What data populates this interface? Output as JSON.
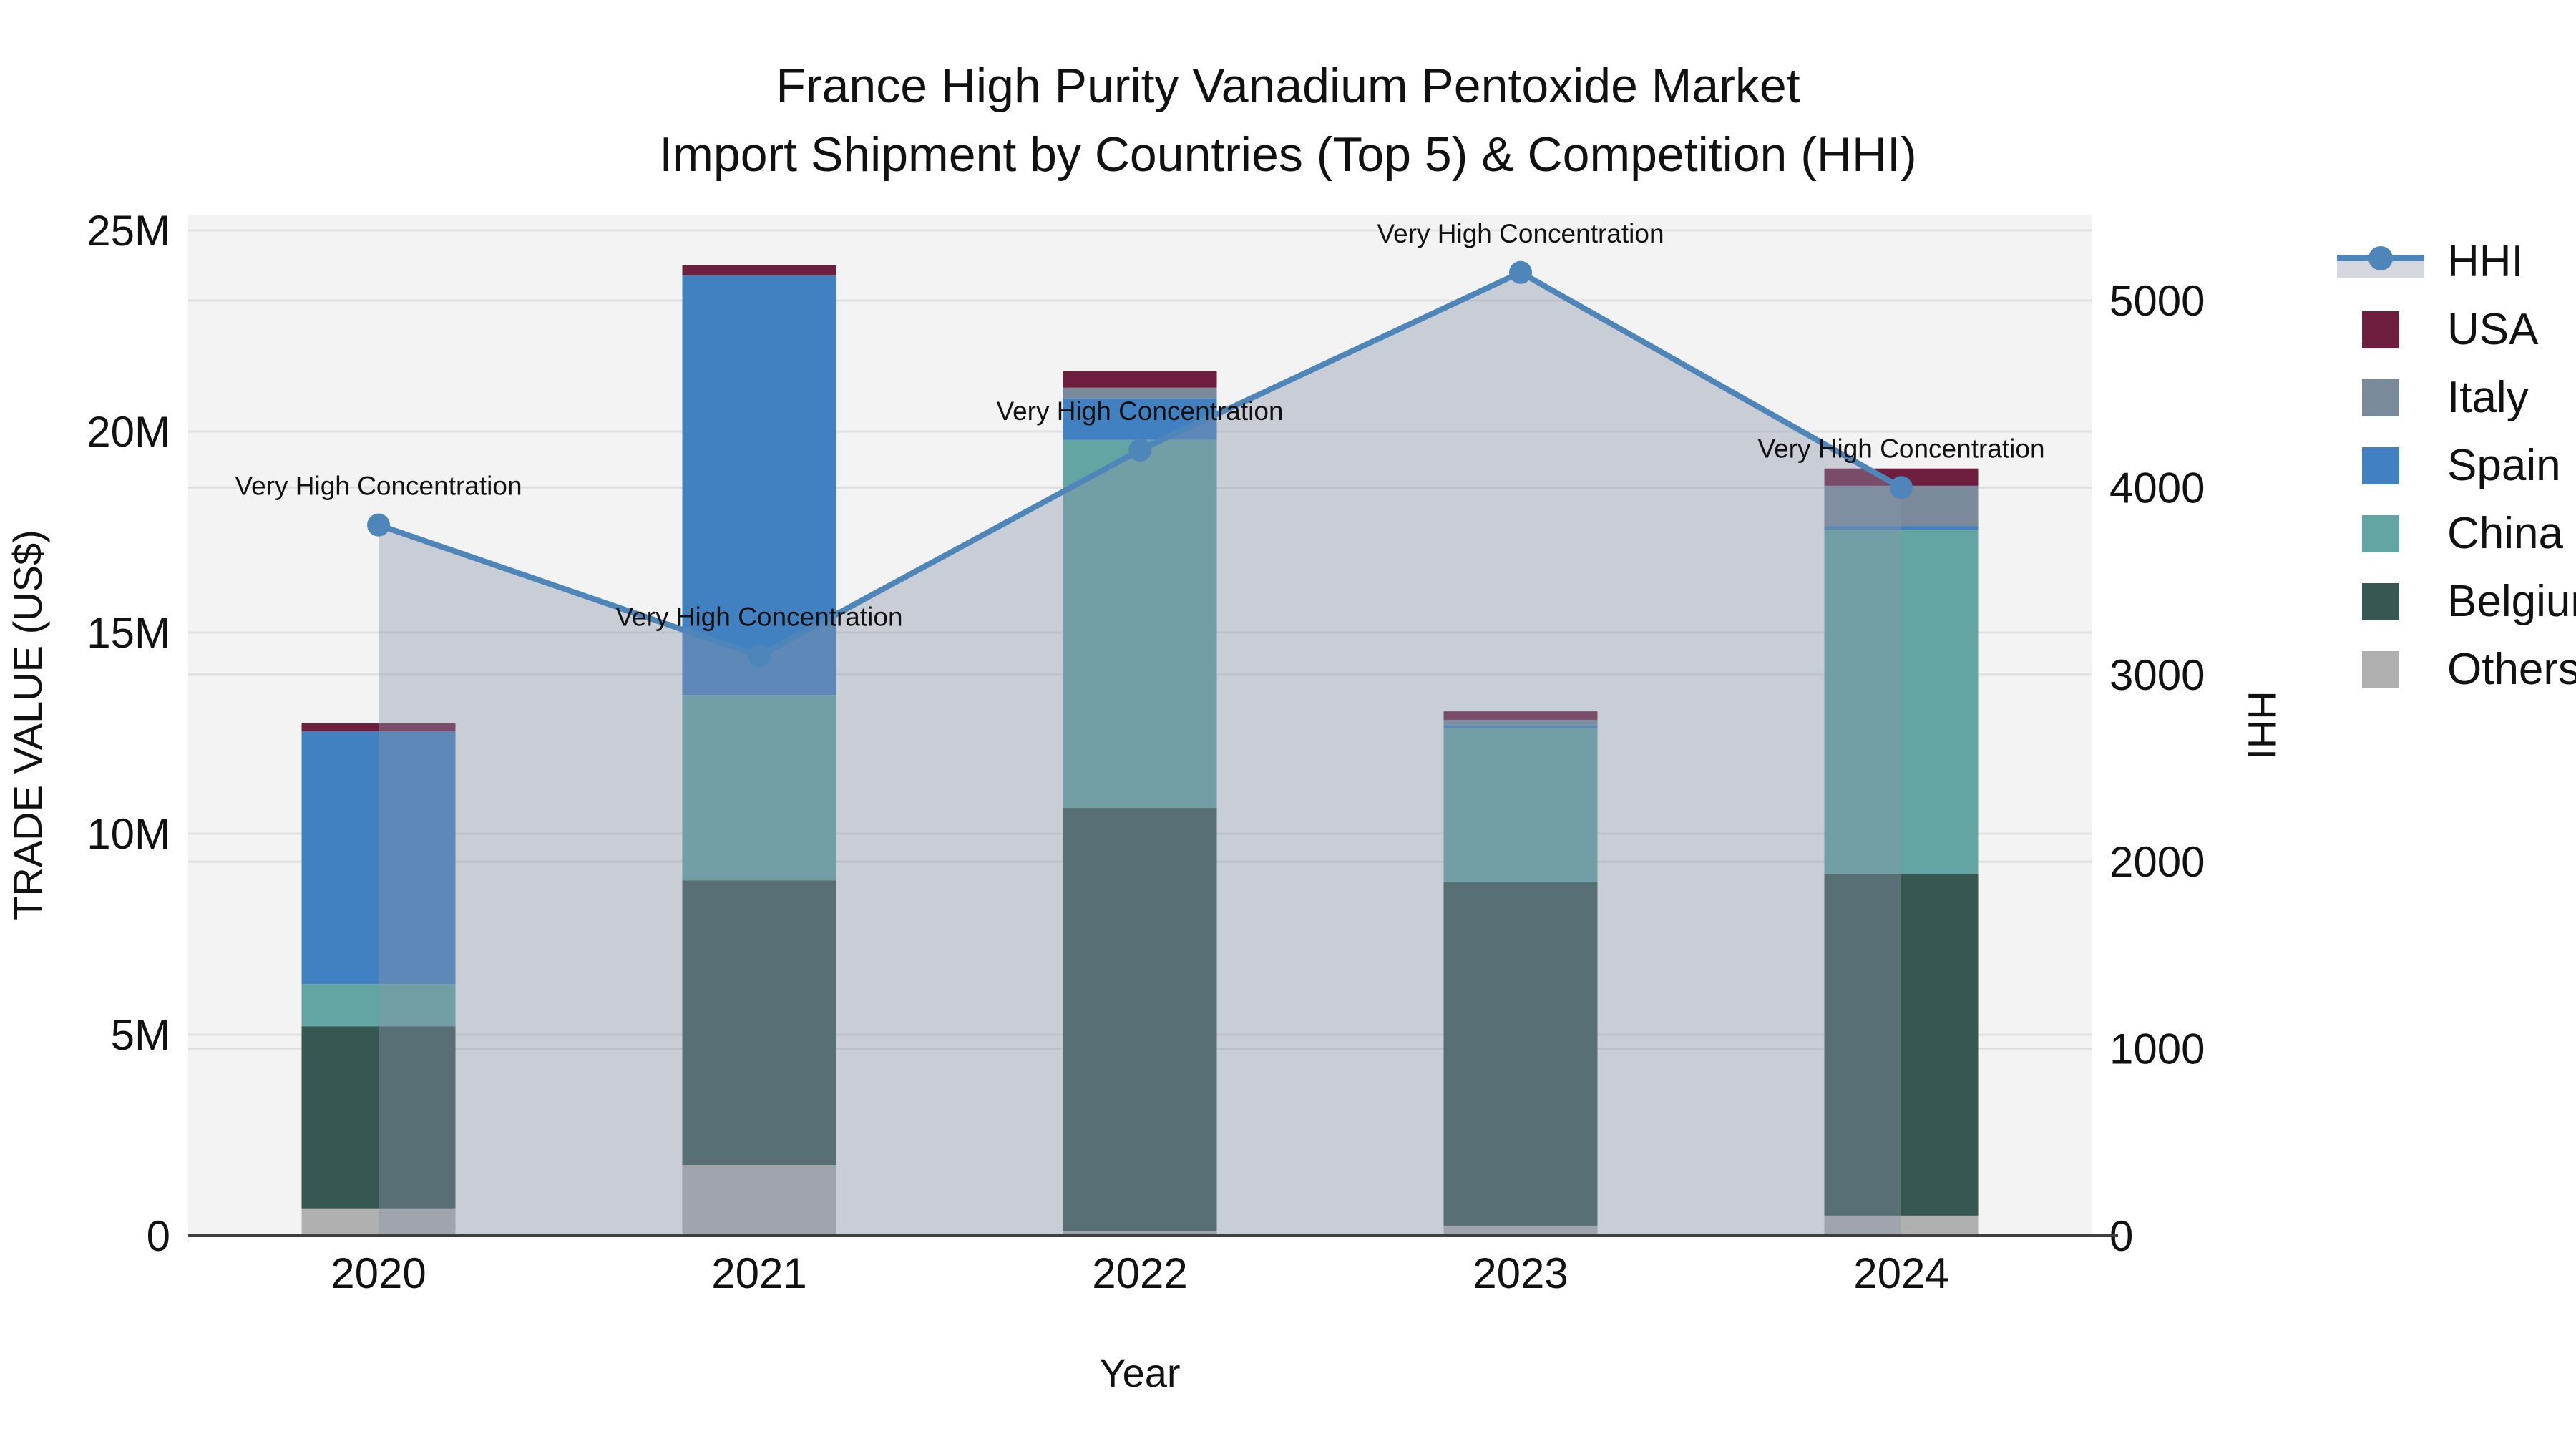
{
  "title": {
    "line1": "France High Purity Vanadium Pentoxide Market",
    "line2": "Import Shipment by Countries (Top 5) & Competition (HHI)"
  },
  "axes": {
    "y_left": {
      "title": "TRADE VALUE (US$)",
      "tick_labels": [
        "0",
        "5M",
        "10M",
        "15M",
        "20M",
        "25M"
      ],
      "tick_values": [
        0,
        5,
        10,
        15,
        20,
        25
      ]
    },
    "y_right": {
      "title": "HHI",
      "tick_labels": [
        "0",
        "1000",
        "2000",
        "3000",
        "4000",
        "5000"
      ],
      "tick_values": [
        0,
        1000,
        2000,
        3000,
        4000,
        5000
      ]
    },
    "x": {
      "title": "Year",
      "tick_labels": [
        "2020",
        "2021",
        "2022",
        "2023",
        "2024"
      ]
    }
  },
  "legend": {
    "items": [
      {
        "label": "HHI",
        "kind": "line"
      },
      {
        "label": "USA",
        "kind": "swatch",
        "color_key": "usa"
      },
      {
        "label": "Italy",
        "kind": "swatch",
        "color_key": "italy"
      },
      {
        "label": "Spain",
        "kind": "swatch",
        "color_key": "spain"
      },
      {
        "label": "China",
        "kind": "swatch",
        "color_key": "china"
      },
      {
        "label": "Belgium",
        "kind": "swatch",
        "color_key": "belgium"
      },
      {
        "label": "Others",
        "kind": "swatch",
        "color_key": "others"
      }
    ]
  },
  "chart_data": {
    "type": "combo-stacked-bar-line",
    "categories": [
      "2020",
      "2021",
      "2022",
      "2023",
      "2024"
    ],
    "bar_value_unit": "million US$",
    "stack_order_bottom_to_top": [
      "Others",
      "Belgium",
      "China",
      "Spain",
      "Italy",
      "USA"
    ],
    "series": [
      {
        "name": "Others",
        "color_key": "others",
        "values": [
          0.68,
          1.76,
          0.12,
          0.25,
          0.5
        ]
      },
      {
        "name": "Belgium",
        "color_key": "belgium",
        "values": [
          4.53,
          7.08,
          10.52,
          8.54,
          8.5
        ]
      },
      {
        "name": "China",
        "color_key": "china",
        "values": [
          1.05,
          4.61,
          9.15,
          3.84,
          8.56
        ]
      },
      {
        "name": "Spain",
        "color_key": "spain",
        "values": [
          6.28,
          10.43,
          1.03,
          0.07,
          0.09
        ]
      },
      {
        "name": "Italy",
        "color_key": "italy",
        "values": [
          0.0,
          0.0,
          0.27,
          0.13,
          1.0
        ]
      },
      {
        "name": "USA",
        "color_key": "usa",
        "values": [
          0.2,
          0.25,
          0.41,
          0.21,
          0.43
        ]
      }
    ],
    "bar_totals": [
      12.74,
      24.13,
      21.5,
      13.04,
      19.08
    ],
    "line_series": {
      "name": "HHI",
      "axis": "right",
      "values": [
        3800,
        3100,
        4200,
        5150,
        4000
      ],
      "area_fill": true
    },
    "point_annotations": [
      "Very High Concentration",
      "Very High Concentration",
      "Very High Concentration",
      "Very High Concentration",
      "Very High Concentration"
    ],
    "ylim_left_millions": [
      0,
      25.4
    ],
    "ylim_right": [
      0,
      5460
    ],
    "grid": true,
    "legend_position": "right"
  },
  "colors": {
    "usa": "#6e1e3e",
    "italy": "#7b8a9b",
    "spain": "#4181c1",
    "china": "#63a5a3",
    "belgium": "#375852",
    "others": "#b0b0b0",
    "hhi_line": "#4e86ba",
    "hhi_area": "rgba(138,148,170,0.40)",
    "plot_bg": "#f3f3f4",
    "grid_left": "#e2e2e2",
    "grid_right": "#dddfe1",
    "axis_line": "#3f3f3f",
    "text": "#111111"
  }
}
